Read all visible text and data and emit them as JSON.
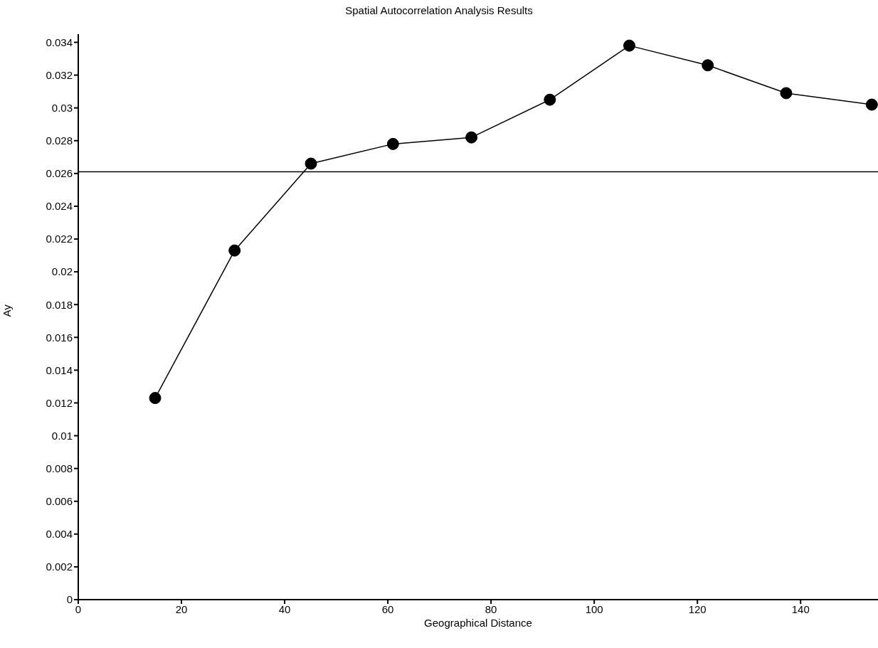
{
  "chart_data": {
    "type": "line",
    "title": "Spatial Autocorrelation Analysis Results",
    "xlabel": "Geographical Distance",
    "ylabel": "Ay",
    "x": [
      14.9,
      30.3,
      45.1,
      61.0,
      76.2,
      91.4,
      106.8,
      122.0,
      137.2,
      153.8
    ],
    "series": [
      {
        "color": "#000000",
        "values": [
          0.0123,
          0.0213,
          0.0266,
          0.0278,
          0.0282,
          0.0305,
          0.0338,
          0.0326,
          0.0309,
          0.0302
        ]
      }
    ],
    "xlim": [
      0,
      155
    ],
    "xticks": [
      0,
      20,
      40,
      60,
      80,
      100,
      120,
      140
    ],
    "ylim": [
      0,
      0.0345
    ],
    "yticks": [
      0,
      0.002,
      0.004,
      0.006,
      0.008,
      0.01,
      0.012,
      0.014,
      0.016,
      0.018,
      0.02,
      0.022,
      0.024,
      0.026,
      0.028,
      0.03,
      0.032,
      0.034
    ],
    "ref_lines": [
      {
        "axis": "y",
        "value": 0.0261,
        "color": "#000000"
      }
    ],
    "grid": false,
    "legend": false,
    "marker": "circle",
    "line_style": "solid"
  }
}
